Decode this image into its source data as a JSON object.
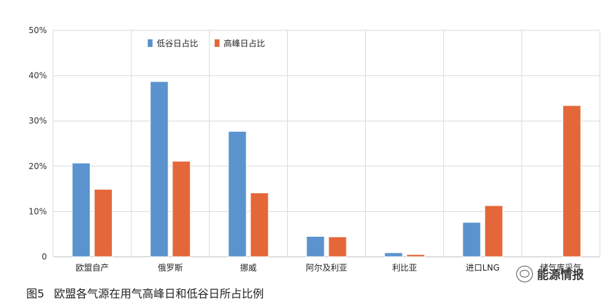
{
  "chart_data": {
    "type": "bar",
    "categories": [
      "欧盟自产",
      "俄罗斯",
      "挪威",
      "阿尔及利亚",
      "利比亚",
      "进口LNG",
      "储气库采气"
    ],
    "series": [
      {
        "name": "低谷日占比",
        "color": "#5b93cf",
        "values": [
          20.7,
          38.7,
          27.7,
          4.5,
          0.9,
          7.6,
          0
        ]
      },
      {
        "name": "高峰日占比",
        "color": "#e4673a",
        "values": [
          14.9,
          21.1,
          14.1,
          4.4,
          0.5,
          11.3,
          33.4
        ]
      }
    ],
    "yticks": [
      "0",
      "10%",
      "20%",
      "30%",
      "40%",
      "50%"
    ],
    "ylim": [
      0,
      50
    ],
    "grid": true,
    "legend": "top-left"
  },
  "caption": {
    "figure_label": "图5",
    "title": "欧盟各气源在用气高峰日和低谷日所占比例"
  },
  "watermark": {
    "text": "能源情报",
    "icon": "wechat-icon"
  }
}
